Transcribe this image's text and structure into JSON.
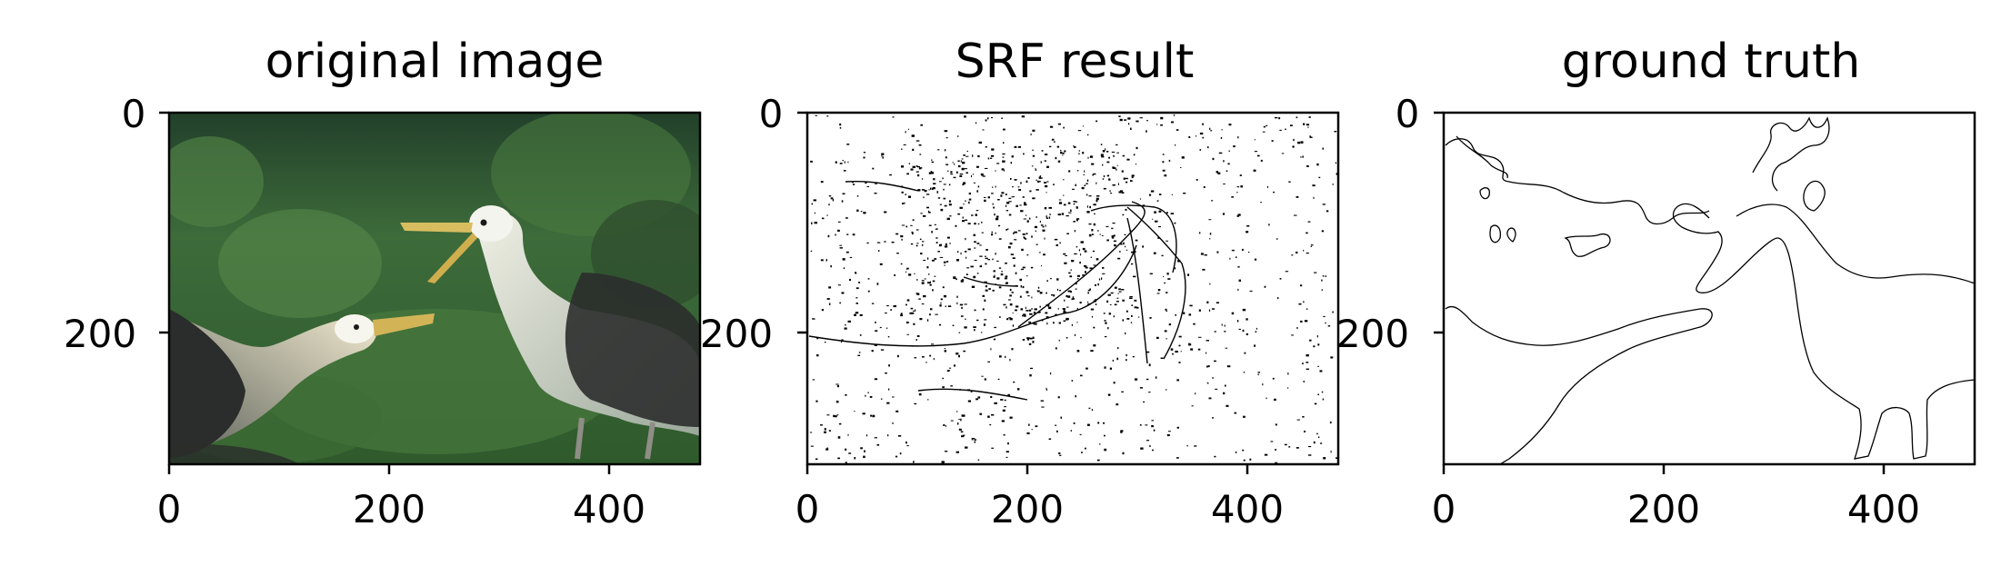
{
  "figure": {
    "panels": [
      {
        "title": "original image",
        "x_ticks": [
          "0",
          "200",
          "400"
        ],
        "y_ticks": [
          "0",
          "200"
        ],
        "content": "photo of two waved albatrosses on green vegetation"
      },
      {
        "title": "SRF result",
        "x_ticks": [
          "0",
          "200",
          "400"
        ],
        "y_ticks": [
          "0",
          "200"
        ],
        "content": "sparse black edge-detection speckles on white"
      },
      {
        "title": "ground truth",
        "x_ticks": [
          "0",
          "200",
          "400"
        ],
        "y_ticks": [
          "0",
          "200"
        ],
        "content": "thin black contour lines outlining birds and background regions"
      }
    ],
    "colors": {
      "background": "#ffffff",
      "axes": "#000000",
      "vegetation": "#3a6a3a",
      "bird_dark": "#2a2d2b",
      "bird_white": "#e8eae3",
      "beak": "#d2b457"
    }
  }
}
